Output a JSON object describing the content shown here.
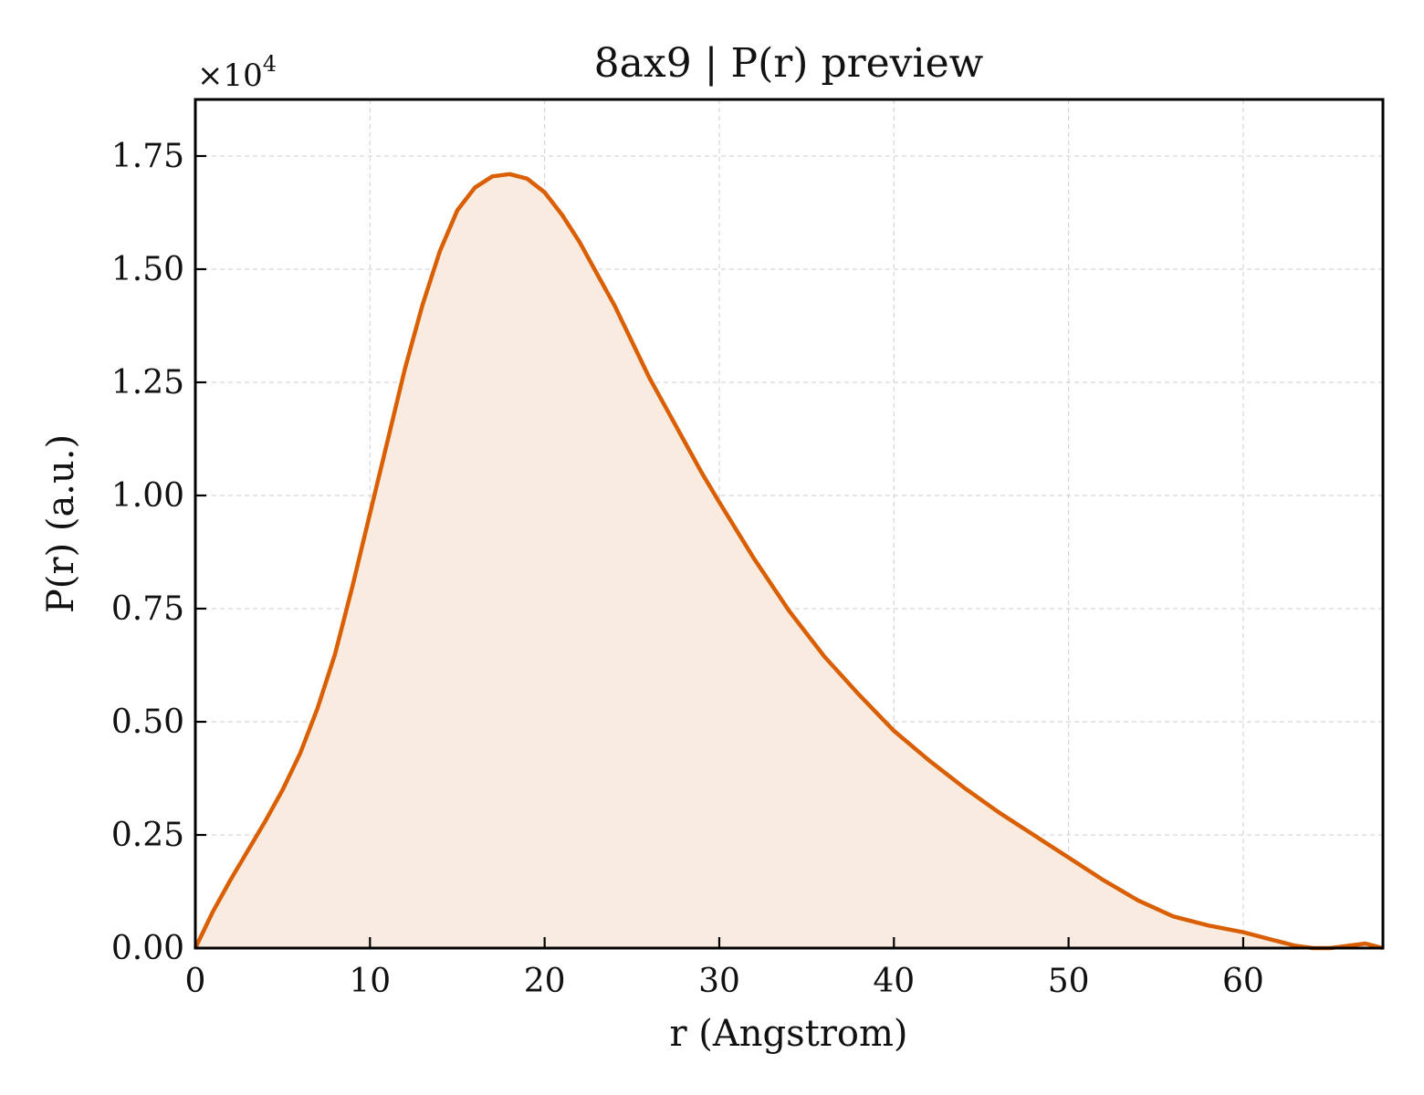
{
  "chart_data": {
    "type": "area",
    "title": "8ax9 | P(r) preview",
    "xlabel": "r (Angstrom)",
    "ylabel": "P(r) (a.u.)",
    "y_multiplier": "×10",
    "y_multiplier_exponent": "4",
    "xlim": [
      0,
      68
    ],
    "ylim": [
      0,
      1.875
    ],
    "y_scale_factor": 10000,
    "x_ticks": [
      0,
      10,
      20,
      30,
      40,
      50,
      60
    ],
    "x_tick_labels": [
      "0",
      "10",
      "20",
      "30",
      "40",
      "50",
      "60"
    ],
    "y_ticks": [
      0,
      0.25,
      0.5,
      0.75,
      1.0,
      1.25,
      1.5,
      1.75
    ],
    "y_tick_labels": [
      "0.00",
      "0.25",
      "0.50",
      "0.75",
      "1.00",
      "1.25",
      "1.50",
      "1.75"
    ],
    "grid": true,
    "line_color": "#d95f02",
    "fill_color": "#f9ebe0",
    "series": [
      {
        "x": [
          0,
          1,
          2,
          3,
          4,
          5,
          6,
          7,
          8,
          9,
          10,
          11,
          12,
          13,
          14,
          15,
          16,
          17,
          18,
          19,
          20,
          21,
          22,
          23,
          24,
          25,
          26,
          27,
          28,
          29,
          30,
          32,
          34,
          36,
          38,
          40,
          42,
          44,
          46,
          48,
          50,
          52,
          54,
          56,
          58,
          60,
          62,
          63,
          64,
          65,
          66,
          67,
          68
        ],
        "y": [
          0,
          0.08,
          0.15,
          0.215,
          0.28,
          0.35,
          0.43,
          0.53,
          0.65,
          0.8,
          0.96,
          1.12,
          1.28,
          1.42,
          1.54,
          1.63,
          1.68,
          1.705,
          1.71,
          1.7,
          1.67,
          1.62,
          1.56,
          1.49,
          1.42,
          1.34,
          1.26,
          1.19,
          1.12,
          1.05,
          0.985,
          0.86,
          0.745,
          0.645,
          0.56,
          0.48,
          0.415,
          0.355,
          0.3,
          0.25,
          0.2,
          0.15,
          0.105,
          0.07,
          0.05,
          0.035,
          0.015,
          0.005,
          0.0,
          0.0,
          0.005,
          0.01,
          0.0
        ]
      }
    ]
  }
}
